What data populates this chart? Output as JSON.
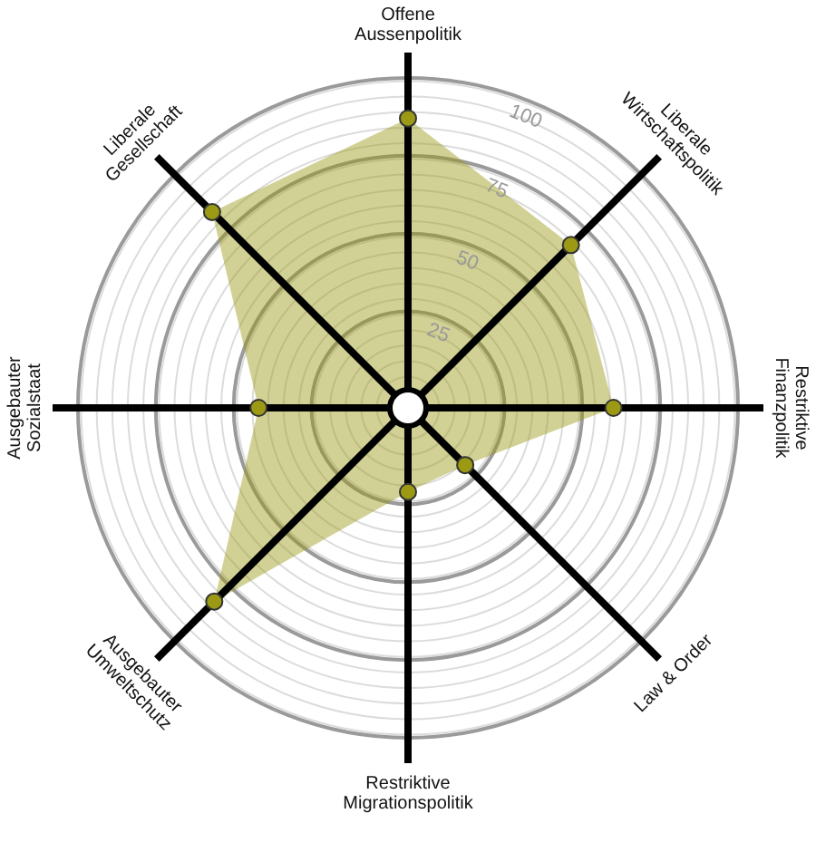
{
  "chart_data": {
    "type": "radar",
    "categories": [
      "Offene\nAussenpolitik",
      "Liberale\nWirtschaftspolitik",
      "Restriktive\nFinanzpolitik",
      "Law & Order",
      "Restriktive\nMigrationspolitik",
      "Ausgebauter\nUmweltschutz",
      "Ausgebauter\nSozialstaat",
      "Liberale\nGesellschaft"
    ],
    "series": [
      {
        "color": "#9c9a14",
        "values": [
          87,
          68,
          60,
          20,
          21,
          82,
          42,
          83
        ]
      }
    ],
    "ylim": [
      -6,
      100
    ],
    "yticks": [
      25,
      50,
      75,
      100
    ],
    "grid": true,
    "marker": "circle"
  }
}
